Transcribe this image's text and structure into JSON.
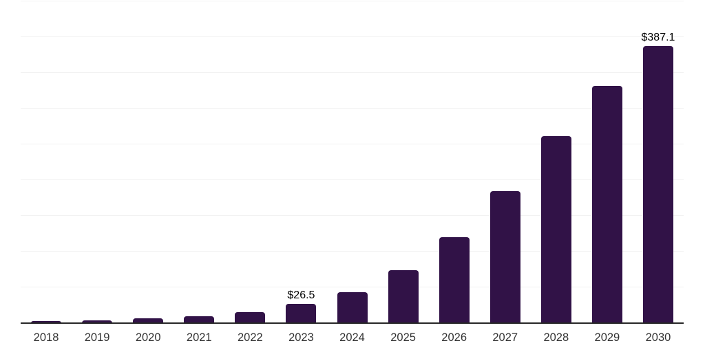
{
  "chart_data": {
    "type": "bar",
    "title": "",
    "xlabel": "",
    "ylabel": "",
    "categories": [
      "2018",
      "2019",
      "2020",
      "2021",
      "2022",
      "2023",
      "2024",
      "2025",
      "2026",
      "2027",
      "2028",
      "2029",
      "2030"
    ],
    "values": [
      2.6,
      4.1,
      7.0,
      9.6,
      15.5,
      26.5,
      43.4,
      74.3,
      120.1,
      184.3,
      261.2,
      332.0,
      387.1
    ],
    "value_labels": {
      "2023": "$26.5",
      "2030": "$387.1"
    },
    "ylim": [
      0,
      450
    ],
    "gridline_step": 50,
    "grid": true,
    "legend": "none",
    "y_tick_labels_visible": false,
    "colors": {
      "bar": "#311247",
      "gridline": "#f2f2f2",
      "axis": "#262626",
      "tick_label": "#333333",
      "value_label": "#000000",
      "background": "#ffffff"
    }
  }
}
